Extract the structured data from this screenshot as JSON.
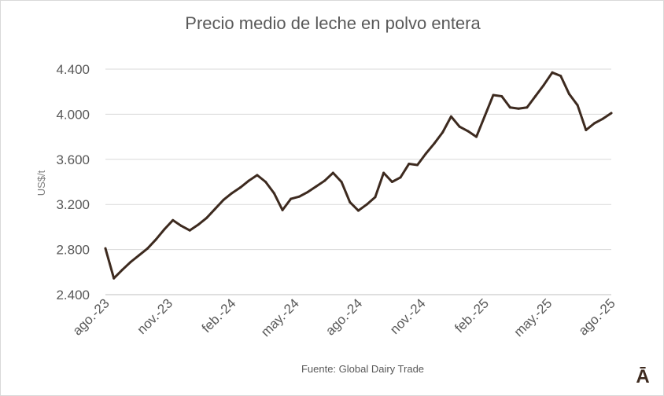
{
  "chart_data": {
    "type": "line",
    "title": "Precio medio de leche en polvo entera",
    "xlabel": "",
    "ylabel": "US$/t",
    "ylim": [
      2400,
      4400
    ],
    "yticks": [
      "2.400",
      "2.800",
      "3.200",
      "3.600",
      "4.000",
      "4.400"
    ],
    "ytick_values": [
      2400,
      2800,
      3200,
      3600,
      4000,
      4400
    ],
    "xtick_labels": [
      "ago.-23",
      "nov.-23",
      "feb.-24",
      "may.-24",
      "ago.-24",
      "nov.-24",
      "feb.-25",
      "may.-25",
      "ago.-25"
    ],
    "grid": true,
    "line_color": "#3d2a1f",
    "series": [
      {
        "values": [
          2810,
          2545,
          2620,
          2690,
          2750,
          2810,
          2890,
          2980,
          3060,
          3010,
          2970,
          3020,
          3080,
          3160,
          3240,
          3300,
          3350,
          3410,
          3460,
          3400,
          3300,
          3150,
          3250,
          3270,
          3310,
          3360,
          3410,
          3480,
          3400,
          3220,
          3145,
          3200,
          3265,
          3480,
          3400,
          3440,
          3560,
          3550,
          3650,
          3740,
          3840,
          3980,
          3890,
          3850,
          3800,
          3985,
          4170,
          4160,
          4060,
          4050,
          4060,
          4160,
          4260,
          4370,
          4340,
          4180,
          4080,
          3860,
          3920,
          3960,
          4010
        ]
      }
    ]
  },
  "source": "Fuente: Global Dairy Trade",
  "logo": "Ā"
}
